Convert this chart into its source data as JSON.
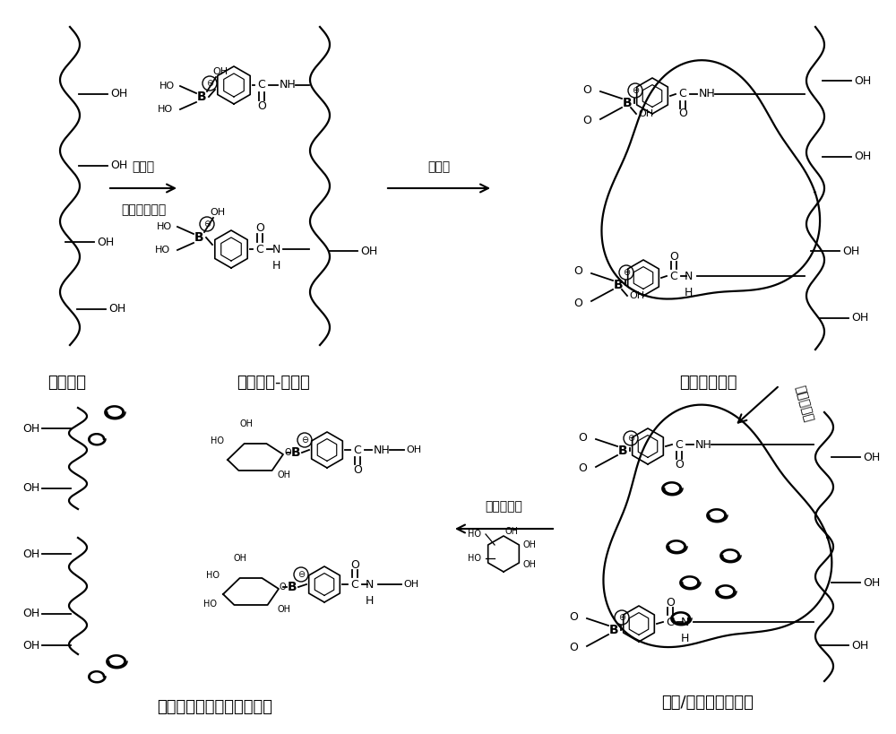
{
  "background_color": "#ffffff",
  "fig_width": 10.0,
  "fig_height": 8.19,
  "dpi": 100,
  "labels": {
    "panel1": "药桑多糖",
    "panel2": "药桑多糖-苯硼酸",
    "panel3": "多糖纳米载体",
    "panel4": "多糖/胰岛素纳米载体",
    "panel5": "多糖载体解离，胰岛素释放",
    "arrow1_top": "三乙胺",
    "arrow1_bot": "间氨基苯硼酸",
    "arrow2": "自组装",
    "arrow3": "胰岛素装载",
    "arrow4": "葡萄糖响应"
  }
}
